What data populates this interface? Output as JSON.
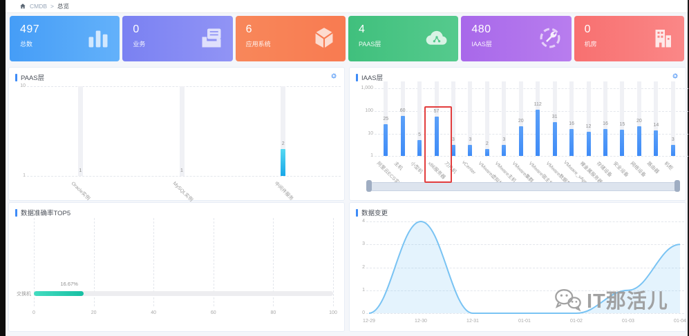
{
  "breadcrumb": {
    "root": "CMDB",
    "current": "总览",
    "home_icon": "home-icon",
    "separator": ">"
  },
  "colors": {
    "accent": "#3e8bf7",
    "iaas_bar": "#3e8bf7",
    "paas_bar_top": "#55d9f2",
    "paas_bar_bottom": "#18a7e8",
    "teal_bar_left": "#43dcc0",
    "teal_bar_right": "#17bfa3",
    "area_line": "#79c3f3",
    "area_fill": "rgba(121,195,243,0.20)",
    "highlight_red": "#e23c3c"
  },
  "cards": [
    {
      "key": "total",
      "value": "497",
      "label": "总数",
      "icon": "bar-chart-icon",
      "g1": "#459df7",
      "g2": "#63b1fa"
    },
    {
      "key": "business",
      "value": "0",
      "label": "业务",
      "icon": "business-icon",
      "g1": "#7a81f2",
      "g2": "#9194f5"
    },
    {
      "key": "app-system",
      "value": "6",
      "label": "应用系统",
      "icon": "cube-icon",
      "g1": "#f8875a",
      "g2": "#f87b51"
    },
    {
      "key": "paas",
      "value": "4",
      "label": "PAAS层",
      "icon": "cloud-icon",
      "g1": "#40c07d",
      "g2": "#55ca8d"
    },
    {
      "key": "iaas",
      "value": "480",
      "label": "IAAS层",
      "icon": "wrench-icon",
      "g1": "#a868ea",
      "g2": "#b87dee"
    },
    {
      "key": "room",
      "value": "0",
      "label": "机房",
      "icon": "building-icon",
      "g1": "#f87070",
      "g2": "#fa8787"
    }
  ],
  "panels": {
    "paas_title": "PAAS层",
    "iaas_title": "IAAS层",
    "accuracy_title": "数据准确率TOP5",
    "change_title": "数据变更",
    "settings_icon": "gear-icon"
  },
  "chart_data": [
    {
      "id": "paas",
      "type": "bar",
      "scale": "log",
      "title": "PAAS层",
      "categories": [
        "Oracle实例",
        "MySQL实例",
        "中间件服务"
      ],
      "values": [
        1,
        1,
        2
      ],
      "yticks": [
        "10",
        "1"
      ],
      "ylim": [
        1,
        10
      ],
      "grid": "dashed"
    },
    {
      "id": "iaas",
      "type": "bar",
      "scale": "log",
      "title": "IAAS层",
      "categories": [
        "阿里云ECS实例",
        "主机",
        "小型机",
        "x86服务器",
        "刀片机",
        "vCenter",
        "VMware虚拟机",
        "VMware主机",
        "VMware集群",
        "VMware宿主机",
        "VMware数据存储",
        "VMware_vApp",
        "裸金属服务器",
        "存储设备",
        "安全设备",
        "网络设备",
        "路由器",
        "机柜"
      ],
      "values": [
        25,
        60,
        5,
        57,
        3,
        3,
        2,
        3,
        20,
        112,
        31,
        16,
        12,
        16,
        15,
        20,
        14,
        3
      ],
      "yticks": [
        "1,000",
        "100",
        "10",
        "1"
      ],
      "ylim": [
        1,
        1000
      ],
      "grid": "dashed",
      "highlight_index": 3,
      "has_datazoom_scrollbar": true
    },
    {
      "id": "accuracy",
      "type": "bar-horizontal",
      "title": "数据准确率TOP5",
      "categories": [
        "交换机"
      ],
      "values": [
        16.67
      ],
      "value_labels": [
        "16.67%"
      ],
      "xticks": [
        "0",
        "20",
        "40",
        "60",
        "80",
        "100"
      ],
      "xlim": [
        0,
        100
      ],
      "grid": "dashed"
    },
    {
      "id": "change",
      "type": "area",
      "title": "数据变更",
      "x": [
        "12-29",
        "12-30",
        "12-31",
        "01-01",
        "01-02",
        "01-03",
        "01-04"
      ],
      "values": [
        0,
        4,
        0,
        0,
        0,
        1,
        3
      ],
      "yticks": [
        "4",
        "3",
        "2",
        "1",
        "0"
      ],
      "ylim": [
        0,
        4
      ],
      "grid": "dashed",
      "smooth": true
    }
  ],
  "watermark": {
    "text": "IT那活儿",
    "icon": "wechat-icon"
  }
}
